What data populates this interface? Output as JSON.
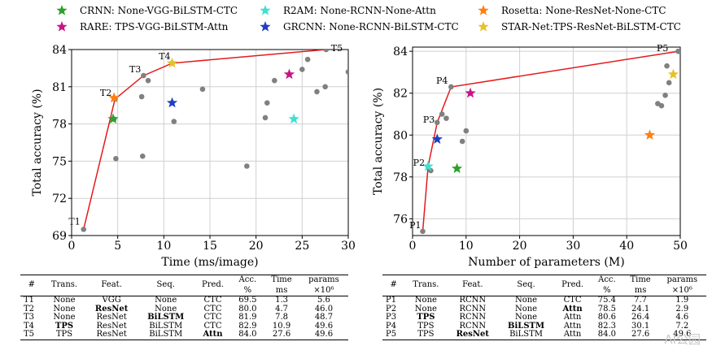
{
  "legend": [
    {
      "label": "CRNN: None-VGG-BiLSTM-CTC",
      "color": "#2ca02c"
    },
    {
      "label": "RARE: TPS-VGG-BiLSTM-Attn",
      "color": "#c71585"
    },
    {
      "label": "R2AM:   None-RCNN-None-Attn",
      "color": "#40e0d0"
    },
    {
      "label": "GRCNN: None-RCNN-BiLSTM-CTC",
      "color": "#1f3fbf"
    },
    {
      "label": "Rosetta:   None-ResNet-None-CTC",
      "color": "#ff7f0e"
    },
    {
      "label": "STAR-Net:TPS-ResNet-BiLSTM-CTC",
      "color": "#e6c229"
    }
  ],
  "chart_data": [
    {
      "type": "scatter",
      "xlabel": "Time (ms/image)",
      "ylabel": "Total accuracy (%)",
      "xlim": [
        0,
        30
      ],
      "ylim": [
        69,
        84
      ],
      "xticks": [
        0,
        5,
        10,
        15,
        20,
        25,
        30
      ],
      "yticks": [
        69,
        72,
        75,
        78,
        81,
        84
      ],
      "grid": true,
      "frontier": {
        "labels": [
          "T1",
          "T2",
          "T3",
          "T4",
          "T5"
        ],
        "x": [
          1.3,
          4.7,
          7.8,
          10.9,
          27.6
        ],
        "y": [
          69.5,
          80.0,
          81.9,
          82.9,
          84.0
        ]
      },
      "gray_points": {
        "x": [
          4.6,
          4.8,
          7.6,
          7.7,
          8.3,
          11.1,
          14.2,
          19.0,
          21.0,
          21.2,
          22.0,
          25.0,
          25.6,
          26.6,
          27.5,
          30.0
        ],
        "y": [
          78.4,
          75.2,
          80.2,
          75.4,
          81.5,
          78.2,
          80.8,
          74.6,
          78.5,
          79.7,
          81.5,
          82.4,
          83.2,
          80.6,
          81.0,
          82.2
        ]
      },
      "stars": [
        {
          "model": "CRNN",
          "x": 4.5,
          "y": 78.4
        },
        {
          "model": "Rosetta",
          "x": 4.6,
          "y": 80.1
        },
        {
          "model": "STAR-Net",
          "x": 10.9,
          "y": 82.9
        },
        {
          "model": "GRCNN",
          "x": 10.9,
          "y": 79.7
        },
        {
          "model": "RARE",
          "x": 23.6,
          "y": 82.0
        },
        {
          "model": "R2AM",
          "x": 24.1,
          "y": 78.4
        }
      ]
    },
    {
      "type": "scatter",
      "xlabel": "Number of parameters (M)",
      "ylabel": "Total accuracy (%)",
      "xlim": [
        0,
        50
      ],
      "ylim": [
        75.2,
        84.2
      ],
      "xticks": [
        0,
        10,
        20,
        30,
        40,
        50
      ],
      "yticks": [
        76,
        78,
        80,
        82,
        84
      ],
      "grid": true,
      "frontier": {
        "labels": [
          "P1",
          "P2",
          "P3",
          "P4",
          "P5"
        ],
        "x": [
          1.9,
          2.9,
          4.6,
          7.2,
          49.6
        ],
        "y": [
          75.4,
          78.5,
          80.6,
          82.3,
          84.0
        ]
      },
      "gray_points": {
        "x": [
          3.4,
          5.5,
          6.3,
          9.3,
          10.0,
          45.8,
          46.5,
          47.2,
          47.5,
          47.9,
          49.8
        ],
        "y": [
          78.3,
          81.0,
          80.8,
          79.7,
          80.2,
          81.5,
          81.4,
          81.9,
          83.3,
          82.5,
          84.0
        ]
      },
      "stars": [
        {
          "model": "R2AM",
          "x": 2.9,
          "y": 78.5
        },
        {
          "model": "GRCNN",
          "x": 4.6,
          "y": 79.8
        },
        {
          "model": "CRNN",
          "x": 8.3,
          "y": 78.4
        },
        {
          "model": "RARE",
          "x": 10.8,
          "y": 82.0
        },
        {
          "model": "Rosetta",
          "x": 44.3,
          "y": 80.0
        },
        {
          "model": "STAR-Net",
          "x": 48.7,
          "y": 82.9
        }
      ]
    }
  ],
  "table_left": {
    "headers": [
      "#",
      "Trans.",
      "Feat.",
      "Seq.",
      "Pred.",
      "Acc.",
      "Time",
      "params"
    ],
    "subheaders": [
      "",
      "",
      "",
      "",
      "",
      "%",
      "ms",
      "×10⁶"
    ],
    "rows": [
      [
        {
          "t": "T1"
        },
        {
          "t": "None"
        },
        {
          "t": "VGG"
        },
        {
          "t": "None"
        },
        {
          "t": "CTC"
        },
        {
          "t": "69.5"
        },
        {
          "t": "1.3"
        },
        {
          "t": "5.6"
        }
      ],
      [
        {
          "t": "T2"
        },
        {
          "t": "None"
        },
        {
          "t": "ResNet",
          "b": true
        },
        {
          "t": "None"
        },
        {
          "t": "CTC"
        },
        {
          "t": "80.0"
        },
        {
          "t": "4.7"
        },
        {
          "t": "46.0"
        }
      ],
      [
        {
          "t": "T3"
        },
        {
          "t": "None"
        },
        {
          "t": "ResNet"
        },
        {
          "t": "BiLSTM",
          "b": true
        },
        {
          "t": "CTC"
        },
        {
          "t": "81.9"
        },
        {
          "t": "7.8"
        },
        {
          "t": "48.7"
        }
      ],
      [
        {
          "t": "T4"
        },
        {
          "t": "TPS",
          "b": true
        },
        {
          "t": "ResNet"
        },
        {
          "t": "BiLSTM"
        },
        {
          "t": "CTC"
        },
        {
          "t": "82.9"
        },
        {
          "t": "10.9"
        },
        {
          "t": "49.6"
        }
      ],
      [
        {
          "t": "T5"
        },
        {
          "t": "TPS"
        },
        {
          "t": "ResNet"
        },
        {
          "t": "BiLSTM"
        },
        {
          "t": "Attn",
          "b": true
        },
        {
          "t": "84.0"
        },
        {
          "t": "27.6"
        },
        {
          "t": "49.6"
        }
      ]
    ]
  },
  "table_right": {
    "headers": [
      "#",
      "Trans.",
      "Feat.",
      "Seq.",
      "Pred.",
      "Acc.",
      "Time",
      "params"
    ],
    "subheaders": [
      "",
      "",
      "",
      "",
      "",
      "%",
      "ms",
      "×10⁶"
    ],
    "rows": [
      [
        {
          "t": "P1"
        },
        {
          "t": "None"
        },
        {
          "t": "RCNN"
        },
        {
          "t": "None"
        },
        {
          "t": "CTC"
        },
        {
          "t": "75.4"
        },
        {
          "t": "7.7"
        },
        {
          "t": "1.9"
        }
      ],
      [
        {
          "t": "P2"
        },
        {
          "t": "None"
        },
        {
          "t": "RCNN"
        },
        {
          "t": "None"
        },
        {
          "t": "Attn",
          "b": true
        },
        {
          "t": "78.5"
        },
        {
          "t": "24.1"
        },
        {
          "t": "2.9"
        }
      ],
      [
        {
          "t": "P3"
        },
        {
          "t": "TPS",
          "b": true
        },
        {
          "t": "RCNN"
        },
        {
          "t": "None"
        },
        {
          "t": "Attn"
        },
        {
          "t": "80.6"
        },
        {
          "t": "26.4"
        },
        {
          "t": "4.6"
        }
      ],
      [
        {
          "t": "P4"
        },
        {
          "t": "TPS"
        },
        {
          "t": "RCNN"
        },
        {
          "t": "BiLSTM",
          "b": true
        },
        {
          "t": "Attn"
        },
        {
          "t": "82.3"
        },
        {
          "t": "30.1"
        },
        {
          "t": "7.2"
        }
      ],
      [
        {
          "t": "P5"
        },
        {
          "t": "TPS"
        },
        {
          "t": "ResNet",
          "b": true
        },
        {
          "t": "BiLSTM"
        },
        {
          "t": "Attn"
        },
        {
          "t": "84.0"
        },
        {
          "t": "27.6"
        },
        {
          "t": "49.6"
        }
      ]
    ]
  },
  "watermark": "AI公园"
}
